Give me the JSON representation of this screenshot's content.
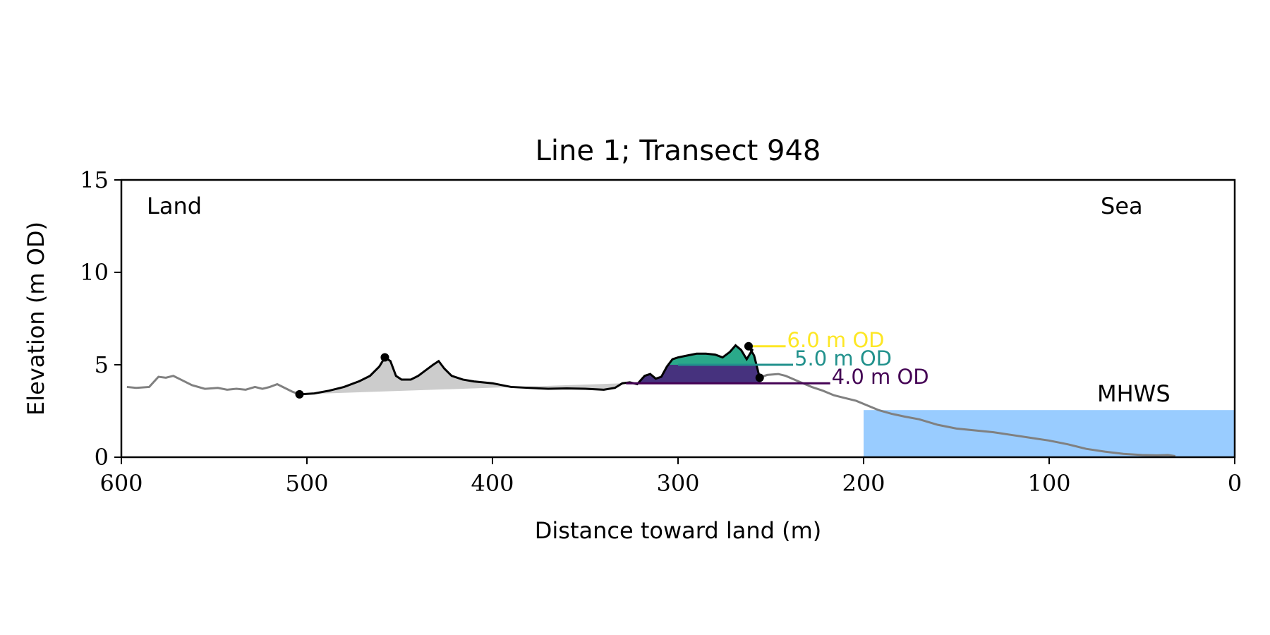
{
  "chart_data": {
    "type": "area",
    "title": "Line 1; Transect 948",
    "xlabel": "Distance toward land (m)",
    "ylabel": "Elevation (m OD)",
    "xlim": [
      600,
      0
    ],
    "ylim": [
      0,
      15
    ],
    "x_ticks": [
      600,
      500,
      400,
      300,
      200,
      100,
      0
    ],
    "y_ticks": [
      0,
      5,
      10,
      15
    ],
    "grid": false,
    "annotations": {
      "land": "Land",
      "sea": "Sea",
      "mhws": "MHWS"
    },
    "mhws": {
      "x_start": 200,
      "x_end": 0,
      "elevation": 2.55
    },
    "colors": {
      "profile_outer": "#808080",
      "profile_inner": "#000000",
      "shade_gray": "#cccccc",
      "level_4": "#440154",
      "level_5": "#21918c",
      "level_6": "#fde725",
      "fill_4": "#46327e",
      "fill_5": "#2aa98a",
      "mhws_fill": "#99ccff",
      "mhws_text": "#6699cc"
    },
    "levels": [
      {
        "label": "4.0 m OD",
        "elevation": 4.0,
        "x_from": 328,
        "x_to": 218
      },
      {
        "label": "5.0 m OD",
        "elevation": 5.0,
        "x_from": 300,
        "x_to": 238
      },
      {
        "label": "6.0 m OD",
        "elevation": 6.0,
        "x_from": 262,
        "x_to": 242
      }
    ],
    "marker_points": [
      {
        "x": 504,
        "y": 3.4
      },
      {
        "x": 458,
        "y": 5.4
      },
      {
        "x": 262,
        "y": 6.0
      },
      {
        "x": 256,
        "y": 4.3
      }
    ],
    "series": [
      {
        "role": "outer-profile",
        "points": [
          [
            597,
            3.8
          ],
          [
            592,
            3.75
          ],
          [
            585,
            3.8
          ],
          [
            580,
            4.35
          ],
          [
            576,
            4.3
          ],
          [
            572,
            4.4
          ],
          [
            568,
            4.2
          ],
          [
            562,
            3.9
          ],
          [
            555,
            3.7
          ],
          [
            548,
            3.75
          ],
          [
            543,
            3.65
          ],
          [
            538,
            3.7
          ],
          [
            533,
            3.65
          ],
          [
            528,
            3.8
          ],
          [
            524,
            3.7
          ],
          [
            520,
            3.8
          ],
          [
            516,
            3.95
          ],
          [
            512,
            3.75
          ],
          [
            508,
            3.55
          ],
          [
            504,
            3.4
          ],
          [
            246,
            4.5
          ],
          [
            242,
            4.4
          ],
          [
            235,
            4.1
          ],
          [
            228,
            3.8
          ],
          [
            222,
            3.6
          ],
          [
            216,
            3.35
          ],
          [
            210,
            3.2
          ],
          [
            204,
            3.05
          ],
          [
            198,
            2.8
          ],
          [
            192,
            2.55
          ],
          [
            185,
            2.35
          ],
          [
            178,
            2.2
          ],
          [
            170,
            2.05
          ],
          [
            160,
            1.75
          ],
          [
            150,
            1.55
          ],
          [
            140,
            1.45
          ],
          [
            130,
            1.35
          ],
          [
            120,
            1.2
          ],
          [
            110,
            1.05
          ],
          [
            100,
            0.9
          ],
          [
            90,
            0.7
          ],
          [
            80,
            0.45
          ],
          [
            70,
            0.3
          ],
          [
            60,
            0.18
          ],
          [
            50,
            0.12
          ],
          [
            42,
            0.1
          ],
          [
            36,
            0.12
          ],
          [
            32,
            0.06
          ]
        ]
      },
      {
        "role": "inner-profile",
        "points": [
          [
            504,
            3.4
          ],
          [
            496,
            3.45
          ],
          [
            488,
            3.6
          ],
          [
            480,
            3.8
          ],
          [
            472,
            4.1
          ],
          [
            466,
            4.4
          ],
          [
            461,
            4.9
          ],
          [
            458,
            5.4
          ],
          [
            455,
            5.2
          ],
          [
            452,
            4.4
          ],
          [
            449,
            4.2
          ],
          [
            444,
            4.2
          ],
          [
            440,
            4.4
          ],
          [
            436,
            4.7
          ],
          [
            432,
            5.0
          ],
          [
            429,
            5.2
          ],
          [
            426,
            4.8
          ],
          [
            422,
            4.4
          ],
          [
            416,
            4.2
          ],
          [
            410,
            4.1
          ],
          [
            400,
            4.0
          ],
          [
            390,
            3.8
          ],
          [
            380,
            3.75
          ],
          [
            370,
            3.7
          ],
          [
            360,
            3.72
          ],
          [
            350,
            3.7
          ],
          [
            340,
            3.65
          ],
          [
            334,
            3.75
          ],
          [
            330,
            4.0
          ],
          [
            326,
            4.05
          ],
          [
            322,
            3.95
          ],
          [
            318,
            4.4
          ],
          [
            315,
            4.5
          ],
          [
            312,
            4.25
          ],
          [
            309,
            4.35
          ],
          [
            306,
            4.9
          ],
          [
            303,
            5.3
          ],
          [
            300,
            5.4
          ],
          [
            295,
            5.5
          ],
          [
            290,
            5.6
          ],
          [
            285,
            5.6
          ],
          [
            280,
            5.55
          ],
          [
            276,
            5.4
          ],
          [
            272,
            5.7
          ],
          [
            269,
            6.05
          ],
          [
            266,
            5.8
          ],
          [
            263,
            5.3
          ],
          [
            260,
            5.8
          ],
          [
            262,
            6.0
          ],
          [
            259,
            5.5
          ],
          [
            256,
            4.3
          ]
        ]
      }
    ]
  }
}
